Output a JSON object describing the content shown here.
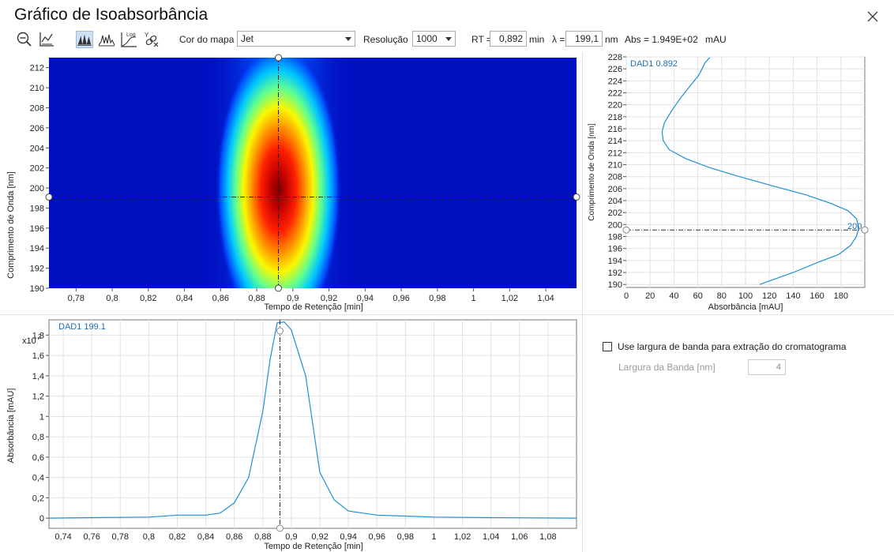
{
  "window": {
    "title": "Gráfico de Isoabsorbância"
  },
  "toolbar": {
    "icons": [
      "zoom-out-icon",
      "reset-axis-icon",
      "isoabsorbance-view-icon",
      "spectrum-overlay-icon",
      "log-scale-icon",
      "unlink-cursor-icon"
    ],
    "log_text": "Log",
    "colormap_label": "Cor do mapa",
    "colormap_value": "Jet",
    "resolution_label": "Resolução",
    "resolution_value": "1000",
    "rt_label": "RT =",
    "rt_value": "0,892",
    "rt_unit": "min",
    "lambda_label": "λ =",
    "lambda_value": "199,1",
    "lambda_unit": "nm",
    "abs_text": "Abs = 1.949E+02",
    "abs_unit": "mAU"
  },
  "heatmap": {
    "xlabel": "Tempo de Retenção [min]",
    "ylabel": "Comprimento de Onda [nm]",
    "xticks": [
      "0,78",
      "0,8",
      "0,82",
      "0,84",
      "0,86",
      "0,88",
      "0,9",
      "0,92",
      "0,94",
      "0,96",
      "0,98",
      "1",
      "1,02",
      "1,04"
    ],
    "yticks": [
      "190",
      "192",
      "194",
      "196",
      "198",
      "200",
      "202",
      "204",
      "206",
      "208",
      "210",
      "212"
    ],
    "xlim": [
      0.765,
      1.057
    ],
    "ylim": [
      190,
      213
    ],
    "cursor_rt": 0.892,
    "cursor_wl": 199.1,
    "colormap": "jet"
  },
  "spectrum": {
    "legend": "DAD1 0.892",
    "xlabel": "Absorbância [mAU]",
    "ylabel": "Comprimento de Onda [nm]",
    "xticks": [
      "0",
      "20",
      "40",
      "60",
      "80",
      "100",
      "120",
      "140",
      "160",
      "180"
    ],
    "yticks": [
      "190",
      "192",
      "194",
      "196",
      "198",
      "200",
      "202",
      "204",
      "206",
      "208",
      "210",
      "212",
      "214",
      "216",
      "218",
      "220",
      "222",
      "224",
      "226",
      "228"
    ],
    "cursor_label": "200",
    "line_color": "#1f8fd6"
  },
  "chromatogram": {
    "legend": "DAD1 199.1",
    "multiplier": "x10",
    "multiplier_exp": "2",
    "xlabel": "Tempo de Retenção [min]",
    "ylabel": "Absorbância [mAU]",
    "xticks": [
      "0,74",
      "0,76",
      "0,78",
      "0,8",
      "0,82",
      "0,84",
      "0,86",
      "0,88",
      "0,9",
      "0,92",
      "0,94",
      "0,96",
      "0,98",
      "1",
      "1,02",
      "1,04",
      "1,06",
      "1,08"
    ],
    "yticks": [
      "0",
      "0,2",
      "0,4",
      "0,6",
      "0,8",
      "1",
      "1,2",
      "1,4",
      "1,6",
      "1,8"
    ],
    "line_color": "#1f8fd6"
  },
  "options": {
    "bandwidth_checkbox_label": "Use largura de banda para extração do cromatograma",
    "bandwidth_label": "Largura da Banda [nm]",
    "bandwidth_value": "4"
  },
  "chart_data": [
    {
      "type": "heatmap",
      "xlabel": "Tempo de Retenção [min]",
      "ylabel": "Comprimento de Onda [nm]",
      "xlim": [
        0.765,
        1.057
      ],
      "ylim": [
        190,
        213
      ],
      "peak": {
        "rt": 0.892,
        "wavelength": 199.5,
        "abs_mAU": 194.9
      }
    },
    {
      "type": "line",
      "series_label": "DAD1 0.892",
      "xlabel": "Absorbância [mAU]",
      "ylabel": "Comprimento de Onda [nm]",
      "xlim": [
        0,
        200
      ],
      "ylim": [
        189.5,
        228
      ],
      "points": [
        [
          112,
          190
        ],
        [
          140,
          192
        ],
        [
          162,
          193.8
        ],
        [
          178,
          195
        ],
        [
          188,
          196.5
        ],
        [
          193,
          198
        ],
        [
          195,
          199.5
        ],
        [
          193,
          201
        ],
        [
          186,
          202.3
        ],
        [
          172,
          203.5
        ],
        [
          150,
          205
        ],
        [
          122,
          206.5
        ],
        [
          95,
          208
        ],
        [
          70,
          209.5
        ],
        [
          50,
          211
        ],
        [
          36,
          212.5
        ],
        [
          31,
          214
        ],
        [
          30,
          215.5
        ],
        [
          32,
          217
        ],
        [
          38,
          219
        ],
        [
          45,
          221
        ],
        [
          53,
          223
        ],
        [
          61,
          225
        ],
        [
          66,
          227
        ],
        [
          70,
          227.9
        ]
      ]
    },
    {
      "type": "line",
      "series_label": "DAD1 199.1",
      "xlabel": "Tempo de Retenção [min]",
      "ylabel": "Absorbância [mAU]",
      "y_multiplier": 100,
      "xlim": [
        0.73,
        1.1
      ],
      "ylim": [
        -0.1,
        1.95
      ],
      "points": [
        [
          0.73,
          0
        ],
        [
          0.76,
          0.005
        ],
        [
          0.8,
          0.01
        ],
        [
          0.82,
          0.03
        ],
        [
          0.84,
          0.03
        ],
        [
          0.85,
          0.05
        ],
        [
          0.86,
          0.15
        ],
        [
          0.87,
          0.4
        ],
        [
          0.88,
          1.05
        ],
        [
          0.885,
          1.55
        ],
        [
          0.89,
          1.92
        ],
        [
          0.895,
          1.93
        ],
        [
          0.9,
          1.85
        ],
        [
          0.91,
          1.4
        ],
        [
          0.92,
          0.45
        ],
        [
          0.93,
          0.18
        ],
        [
          0.94,
          0.07
        ],
        [
          0.96,
          0.03
        ],
        [
          0.98,
          0.02
        ],
        [
          1.0,
          0.01
        ],
        [
          1.04,
          0.005
        ],
        [
          1.1,
          0
        ]
      ]
    }
  ]
}
